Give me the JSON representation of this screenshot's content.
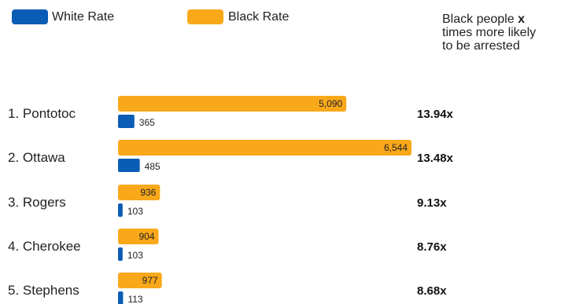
{
  "legend": {
    "white_label": "White Rate",
    "black_label": "Black Rate"
  },
  "ratio_header": {
    "prefix": "Black people ",
    "emphasis": "x",
    "suffix": "times more likely to be arrested"
  },
  "colors": {
    "white_rate": "#0b5cb5",
    "black_rate": "#f9a81a"
  },
  "chart_data": {
    "type": "bar",
    "orientation": "horizontal",
    "categories": [
      "1. Pontotoc",
      "2. Ottawa",
      "3. Rogers",
      "4. Cherokee",
      "5. Stephens"
    ],
    "series": [
      {
        "name": "Black Rate",
        "values": [
          5090,
          6544,
          936,
          904,
          977
        ],
        "labels": [
          "5,090",
          "6,544",
          "936",
          "904",
          "977"
        ]
      },
      {
        "name": "White Rate",
        "values": [
          365,
          485,
          103,
          103,
          113
        ],
        "labels": [
          "365",
          "485",
          "103",
          "103",
          "113"
        ]
      }
    ],
    "ratios": [
      "13.94x",
      "13.48x",
      "9.13x",
      "8.76x",
      "8.68x"
    ],
    "legend_position": "top-left",
    "grid": false
  }
}
